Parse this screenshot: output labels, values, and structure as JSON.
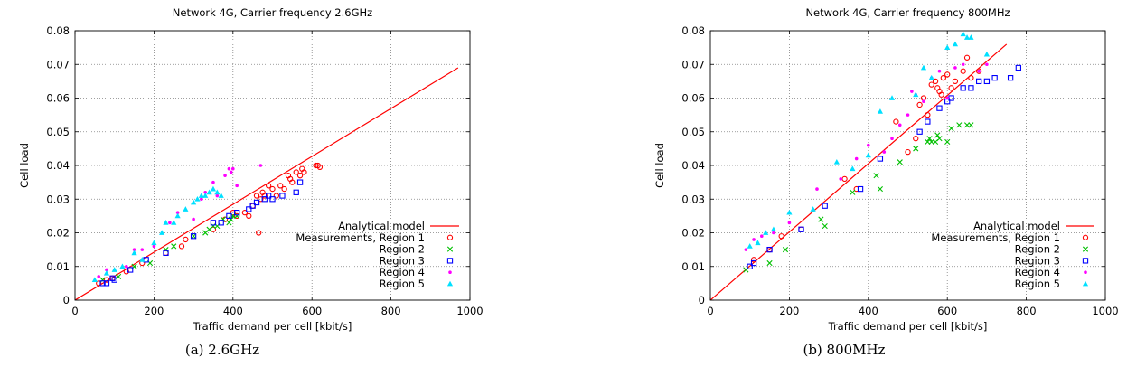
{
  "captions": [
    "(a)  2.6GHz",
    "(b)  800MHz"
  ],
  "colors": {
    "model": "#ff0000",
    "region1": "#ff0000",
    "region2": "#00c000",
    "region3": "#0000ff",
    "region4": "#ff00ff",
    "region5": "#00e0ff",
    "grid": "#808080",
    "axis": "#000000"
  },
  "chart_data": [
    {
      "type": "scatter",
      "title": "Network 4G, Carrier frequency 2.6GHz",
      "xlabel": "Traffic demand per cell [kbit/s]",
      "ylabel": "Cell load",
      "xlim": [
        0,
        1000
      ],
      "ylim": [
        0,
        0.08
      ],
      "xticks": [
        "0",
        "200",
        "400",
        "600",
        "800",
        "1000"
      ],
      "yticks": [
        "0",
        "0.01",
        "0.02",
        "0.03",
        "0.04",
        "0.05",
        "0.06",
        "0.07",
        "0.08"
      ],
      "grid": true,
      "legend_position": "bottom-right",
      "model": {
        "name": "Analytical model",
        "x": [
          0,
          970
        ],
        "y": [
          0,
          0.069
        ]
      },
      "series": [
        {
          "name": "Measurements, Region 1",
          "marker": "circle",
          "x": [
            60,
            80,
            95,
            130,
            170,
            230,
            270,
            280,
            350,
            380,
            400,
            410,
            430,
            440,
            450,
            460,
            465,
            470,
            475,
            480,
            490,
            500,
            510,
            520,
            530,
            540,
            545,
            550,
            560,
            570,
            575,
            580,
            610,
            615,
            620
          ],
          "y": [
            0.005,
            0.006,
            0.0065,
            0.0085,
            0.011,
            0.014,
            0.016,
            0.018,
            0.021,
            0.024,
            0.026,
            0.025,
            0.026,
            0.025,
            0.028,
            0.031,
            0.02,
            0.03,
            0.032,
            0.031,
            0.034,
            0.033,
            0.031,
            0.034,
            0.033,
            0.037,
            0.036,
            0.035,
            0.038,
            0.037,
            0.039,
            0.038,
            0.04,
            0.04,
            0.0395
          ]
        },
        {
          "name": "Region 2",
          "marker": "x",
          "x": [
            70,
            110,
            150,
            190,
            230,
            250,
            300,
            330,
            340,
            350,
            360,
            375,
            390,
            395,
            400,
            410
          ],
          "y": [
            0.006,
            0.007,
            0.01,
            0.011,
            0.015,
            0.016,
            0.019,
            0.02,
            0.021,
            0.022,
            0.022,
            0.024,
            0.023,
            0.024,
            0.025,
            0.025
          ]
        },
        {
          "name": "Region 3",
          "marker": "square",
          "x": [
            70,
            80,
            95,
            100,
            140,
            180,
            230,
            300,
            350,
            370,
            390,
            410,
            440,
            450,
            460,
            480,
            490,
            500,
            525,
            560,
            570
          ],
          "y": [
            0.005,
            0.005,
            0.0065,
            0.006,
            0.009,
            0.012,
            0.014,
            0.019,
            0.023,
            0.023,
            0.025,
            0.026,
            0.027,
            0.028,
            0.029,
            0.03,
            0.031,
            0.03,
            0.031,
            0.032,
            0.035
          ]
        },
        {
          "name": "Region 4",
          "marker": "dot",
          "x": [
            60,
            80,
            130,
            150,
            170,
            200,
            240,
            260,
            300,
            320,
            330,
            350,
            360,
            380,
            390,
            395,
            400,
            410,
            470
          ],
          "y": [
            0.007,
            0.009,
            0.01,
            0.015,
            0.015,
            0.016,
            0.023,
            0.026,
            0.024,
            0.03,
            0.032,
            0.035,
            0.031,
            0.037,
            0.039,
            0.038,
            0.039,
            0.034,
            0.04
          ]
        },
        {
          "name": "Region 5",
          "marker": "triangle",
          "x": [
            50,
            80,
            100,
            120,
            150,
            170,
            200,
            220,
            230,
            250,
            260,
            280,
            300,
            310,
            320,
            330,
            340,
            350,
            360,
            370
          ],
          "y": [
            0.006,
            0.008,
            0.009,
            0.01,
            0.014,
            0.012,
            0.017,
            0.02,
            0.023,
            0.023,
            0.025,
            0.027,
            0.029,
            0.03,
            0.031,
            0.031,
            0.032,
            0.033,
            0.032,
            0.031
          ]
        }
      ]
    },
    {
      "type": "scatter",
      "title": "Network 4G, Carrier frequency 800MHz",
      "xlabel": "Traffic demand per cell [kbit/s]",
      "ylabel": "Cell load",
      "xlim": [
        0,
        1000
      ],
      "ylim": [
        0,
        0.08
      ],
      "xticks": [
        "0",
        "200",
        "400",
        "600",
        "800",
        "1000"
      ],
      "yticks": [
        "0",
        "0.01",
        "0.02",
        "0.03",
        "0.04",
        "0.05",
        "0.06",
        "0.07",
        "0.08"
      ],
      "grid": true,
      "legend_position": "bottom-right",
      "model": {
        "name": "Analytical model",
        "x": [
          0,
          750
        ],
        "y": [
          0,
          0.076
        ]
      },
      "series": [
        {
          "name": "Measurements, Region 1",
          "marker": "circle",
          "x": [
            110,
            150,
            180,
            230,
            340,
            370,
            470,
            500,
            520,
            530,
            540,
            550,
            560,
            570,
            575,
            580,
            585,
            590,
            600,
            610,
            620,
            640,
            650,
            660,
            680
          ],
          "y": [
            0.012,
            0.015,
            0.019,
            0.021,
            0.036,
            0.033,
            0.053,
            0.044,
            0.048,
            0.058,
            0.06,
            0.055,
            0.064,
            0.065,
            0.063,
            0.062,
            0.061,
            0.066,
            0.067,
            0.063,
            0.065,
            0.068,
            0.072,
            0.066,
            0.068
          ]
        },
        {
          "name": "Region 2",
          "marker": "x",
          "x": [
            90,
            150,
            190,
            280,
            290,
            360,
            420,
            430,
            480,
            520,
            550,
            555,
            560,
            570,
            575,
            580,
            600,
            610,
            630,
            650,
            660
          ],
          "y": [
            0.009,
            0.011,
            0.015,
            0.024,
            0.022,
            0.032,
            0.037,
            0.033,
            0.041,
            0.045,
            0.047,
            0.048,
            0.047,
            0.047,
            0.049,
            0.048,
            0.047,
            0.051,
            0.052,
            0.052,
            0.052
          ]
        },
        {
          "name": "Region 3",
          "marker": "square",
          "x": [
            100,
            110,
            150,
            230,
            290,
            380,
            430,
            530,
            550,
            580,
            600,
            610,
            640,
            660,
            680,
            700,
            720,
            760,
            780
          ],
          "y": [
            0.01,
            0.011,
            0.015,
            0.021,
            0.028,
            0.033,
            0.042,
            0.05,
            0.053,
            0.057,
            0.059,
            0.06,
            0.063,
            0.063,
            0.065,
            0.065,
            0.066,
            0.066,
            0.069
          ]
        },
        {
          "name": "Region 4",
          "marker": "dot",
          "x": [
            90,
            110,
            130,
            160,
            200,
            270,
            330,
            370,
            400,
            440,
            460,
            480,
            500,
            510,
            520,
            540,
            560,
            580,
            600,
            620,
            640,
            680,
            700
          ],
          "y": [
            0.015,
            0.018,
            0.019,
            0.02,
            0.023,
            0.033,
            0.036,
            0.042,
            0.046,
            0.044,
            0.048,
            0.052,
            0.055,
            0.062,
            0.061,
            0.059,
            0.066,
            0.068,
            0.06,
            0.069,
            0.07,
            0.068,
            0.07
          ]
        },
        {
          "name": "Region 5",
          "marker": "triangle",
          "x": [
            100,
            120,
            140,
            160,
            200,
            260,
            320,
            360,
            400,
            430,
            460,
            520,
            540,
            560,
            600,
            620,
            640,
            650,
            660,
            700
          ],
          "y": [
            0.016,
            0.017,
            0.02,
            0.021,
            0.026,
            0.027,
            0.041,
            0.039,
            0.043,
            0.056,
            0.06,
            0.061,
            0.069,
            0.066,
            0.075,
            0.076,
            0.079,
            0.078,
            0.078,
            0.073
          ]
        }
      ]
    }
  ]
}
